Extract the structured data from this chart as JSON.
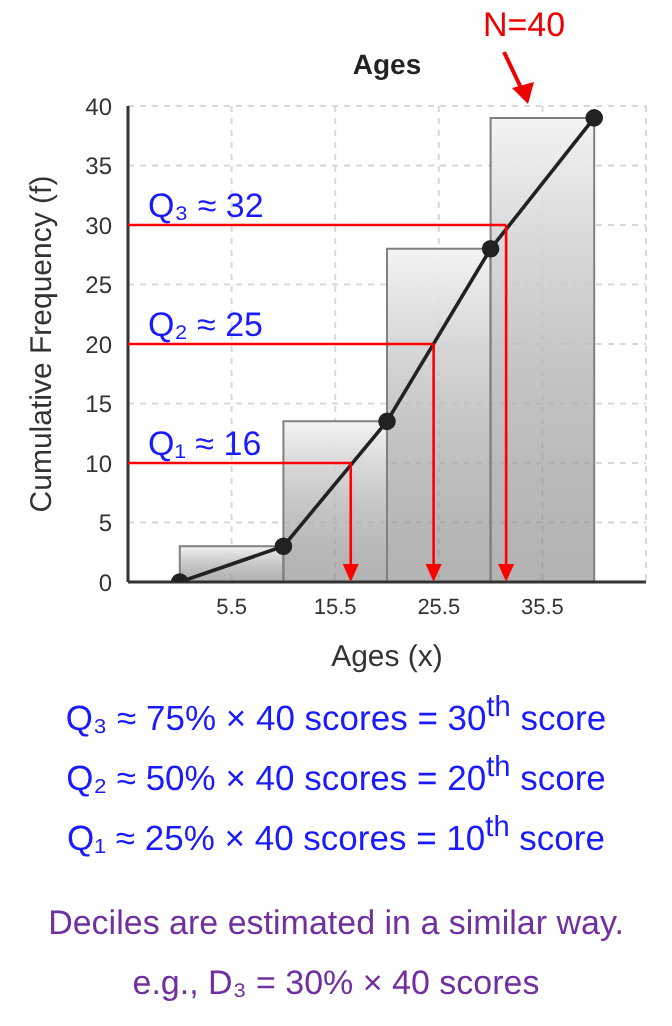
{
  "chart_data": {
    "type": "histogram",
    "title": "Ages",
    "xlabel": "Ages (x)",
    "ylabel": "Cumulative Frequency (f)",
    "bins": [
      0.5,
      10.5,
      20.5,
      30.5,
      40.5
    ],
    "values": [
      3,
      13.5,
      28,
      39
    ],
    "color": "#808080",
    "series": [
      {
        "type": "line",
        "color": "#222222",
        "x": [
          0.5,
          10.5,
          20.5,
          30.5,
          40.5
        ],
        "values": [
          0,
          3,
          13.5,
          28,
          39
        ]
      }
    ],
    "marker": "circle",
    "xlim": [
      -4.5,
      45.5
    ],
    "xticks": [
      5.5,
      15.5,
      25.5,
      35.5
    ],
    "ylim": [
      0,
      40
    ],
    "yticks": [
      0,
      5,
      10,
      15,
      20,
      25,
      30,
      35,
      40
    ],
    "grid": true,
    "ref_lines": [
      {
        "axis": "y",
        "value": 10,
        "label": "Q₁ ≈ 16",
        "color": "#ff0000"
      },
      {
        "axis": "x",
        "value": 17,
        "color": "#ff0000"
      },
      {
        "axis": "y",
        "value": 20,
        "label": "Q₂ ≈ 25",
        "color": "#ff0000"
      },
      {
        "axis": "x",
        "value": 25,
        "color": "#ff0000"
      },
      {
        "axis": "y",
        "value": 30,
        "label": "Q₃ ≈ 32",
        "color": "#ff0000"
      },
      {
        "axis": "x",
        "value": 32,
        "color": "#ff0000"
      }
    ],
    "annotations": [
      "N=40",
      "Q₃ ≈ 75% × 40 scores = 30$^{th}$ score",
      "Q₂ ≈ 50% × 40 scores = 20$^{th}$ score",
      "Q₁ ≈ 25% × 40 scores = 10$^{th}$ score",
      "Deciles are estimated in a similar way.",
      "e.g., D₃ = 30% × 40 scores"
    ]
  }
}
